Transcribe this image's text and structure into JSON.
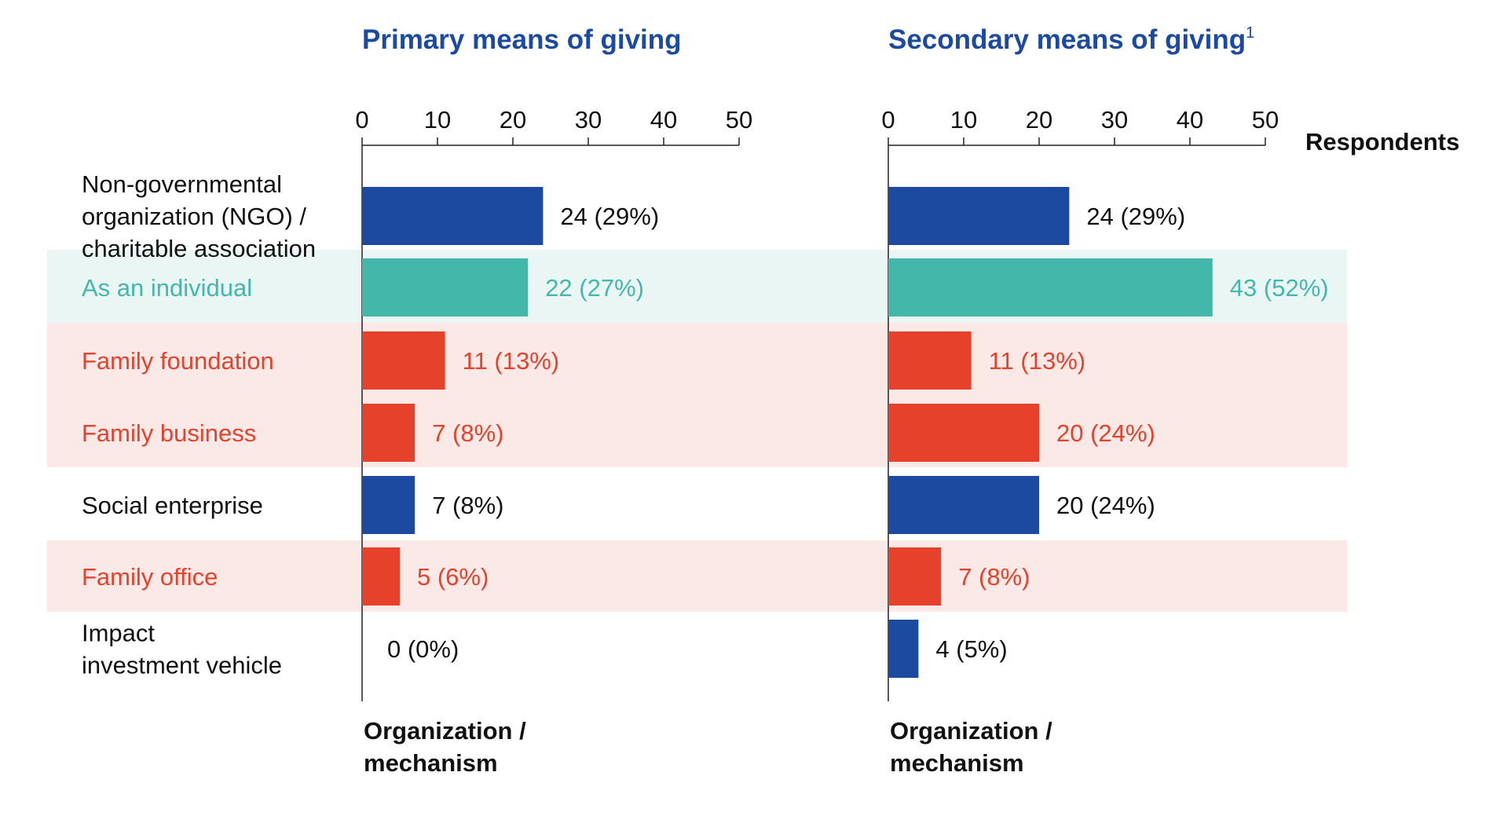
{
  "colors": {
    "blue": "#1b4aa0",
    "teal": "#43b8aa",
    "red": "#e5412b",
    "teal_band": "#eaf6f4",
    "red_band": "#fbe9e7",
    "title": "#1b4aa0",
    "text": "#111111"
  },
  "chart_data": {
    "type": "bar",
    "orientation": "horizontal",
    "unit_label": "Respondents",
    "xlim": [
      0,
      50
    ],
    "xticks": [
      "0",
      "10",
      "20",
      "30",
      "40",
      "50"
    ],
    "category_axis_label": "Organization / mechanism",
    "categories": [
      {
        "label": [
          "Non-governmental",
          "organization (NGO) /",
          "charitable association"
        ],
        "color": "blue",
        "band": "none"
      },
      {
        "label": [
          "As an individual"
        ],
        "color": "teal",
        "band": "teal_band"
      },
      {
        "label": [
          "Family foundation"
        ],
        "color": "red",
        "band": "red_band"
      },
      {
        "label": [
          "Family business"
        ],
        "color": "red",
        "band": "red_band"
      },
      {
        "label": [
          "Social enterprise"
        ],
        "color": "blue",
        "band": "none"
      },
      {
        "label": [
          "Family office"
        ],
        "color": "red",
        "band": "red_band"
      },
      {
        "label": [
          "Impact",
          "investment vehicle"
        ],
        "color": "blue",
        "band": "none"
      }
    ],
    "panels": [
      {
        "title": "Primary means of giving",
        "footnote_marker": "",
        "values": [
          24,
          22,
          11,
          7,
          7,
          5,
          0
        ],
        "labels": [
          "24 (29%)",
          "22 (27%)",
          "11 (13%)",
          "7 (8%)",
          "7 (8%)",
          "5 (6%)",
          "0 (0%)"
        ],
        "axis_label": [
          "Organization /",
          "mechanism"
        ]
      },
      {
        "title": "Secondary means of giving",
        "footnote_marker": "1",
        "values": [
          24,
          43,
          11,
          20,
          20,
          7,
          4
        ],
        "labels": [
          "24 (29%)",
          "43 (52%)",
          "11 (13%)",
          "20 (24%)",
          "20 (24%)",
          "7 (8%)",
          "4 (5%)"
        ],
        "axis_label": [
          "Organization /",
          "mechanism"
        ]
      }
    ]
  }
}
